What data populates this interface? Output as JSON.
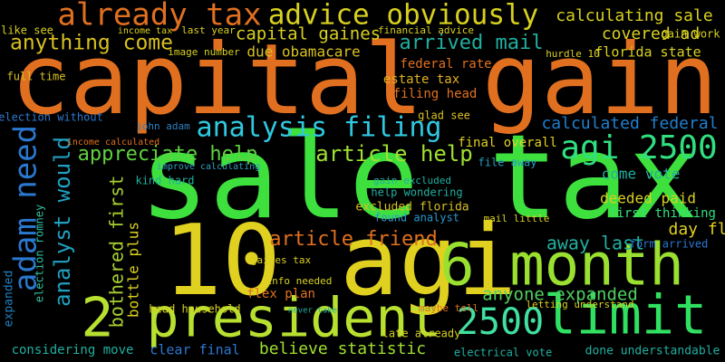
{
  "words": [
    "capital gain",
    "sale tax",
    "10 agi",
    "2 president",
    "6 month",
    "limit",
    "2500",
    "already tax",
    "advice obviously",
    "anything come",
    "capital gaines",
    "arrived mail",
    "calculating sale",
    "covered ad",
    "analysis filing",
    "calculated federal",
    "agi 2500",
    "appreciate help",
    "article help",
    "adam need",
    "analyst would",
    "bothered first",
    "article friend",
    "away last",
    "anyone expanded",
    "believe statistic",
    "considering move",
    "clear final",
    "estate tax",
    "federal rate",
    "due obamacare",
    "filing head",
    "florida state",
    "hurdle 10",
    "excluded florida",
    "deeded paid",
    "first thinking",
    "come vote",
    "day fl",
    "form arrived",
    "expanded",
    "flex plan",
    "found analyst",
    "help wondering",
    "gain excluded",
    "final overall",
    "glad see",
    "file away",
    "kind hard",
    "improve calculating",
    "john adam",
    "income calculated",
    "election romney",
    "election without",
    "full time",
    "done understandable",
    "electrical vote",
    "late already",
    "head household",
    "mail little",
    "gain work",
    "income tax",
    "last year",
    "like see",
    "financial advice",
    "image number",
    "bottle plus",
    "gaines tax",
    "maybe tell",
    "letting understand",
    "info needed",
    "never take"
  ]
}
